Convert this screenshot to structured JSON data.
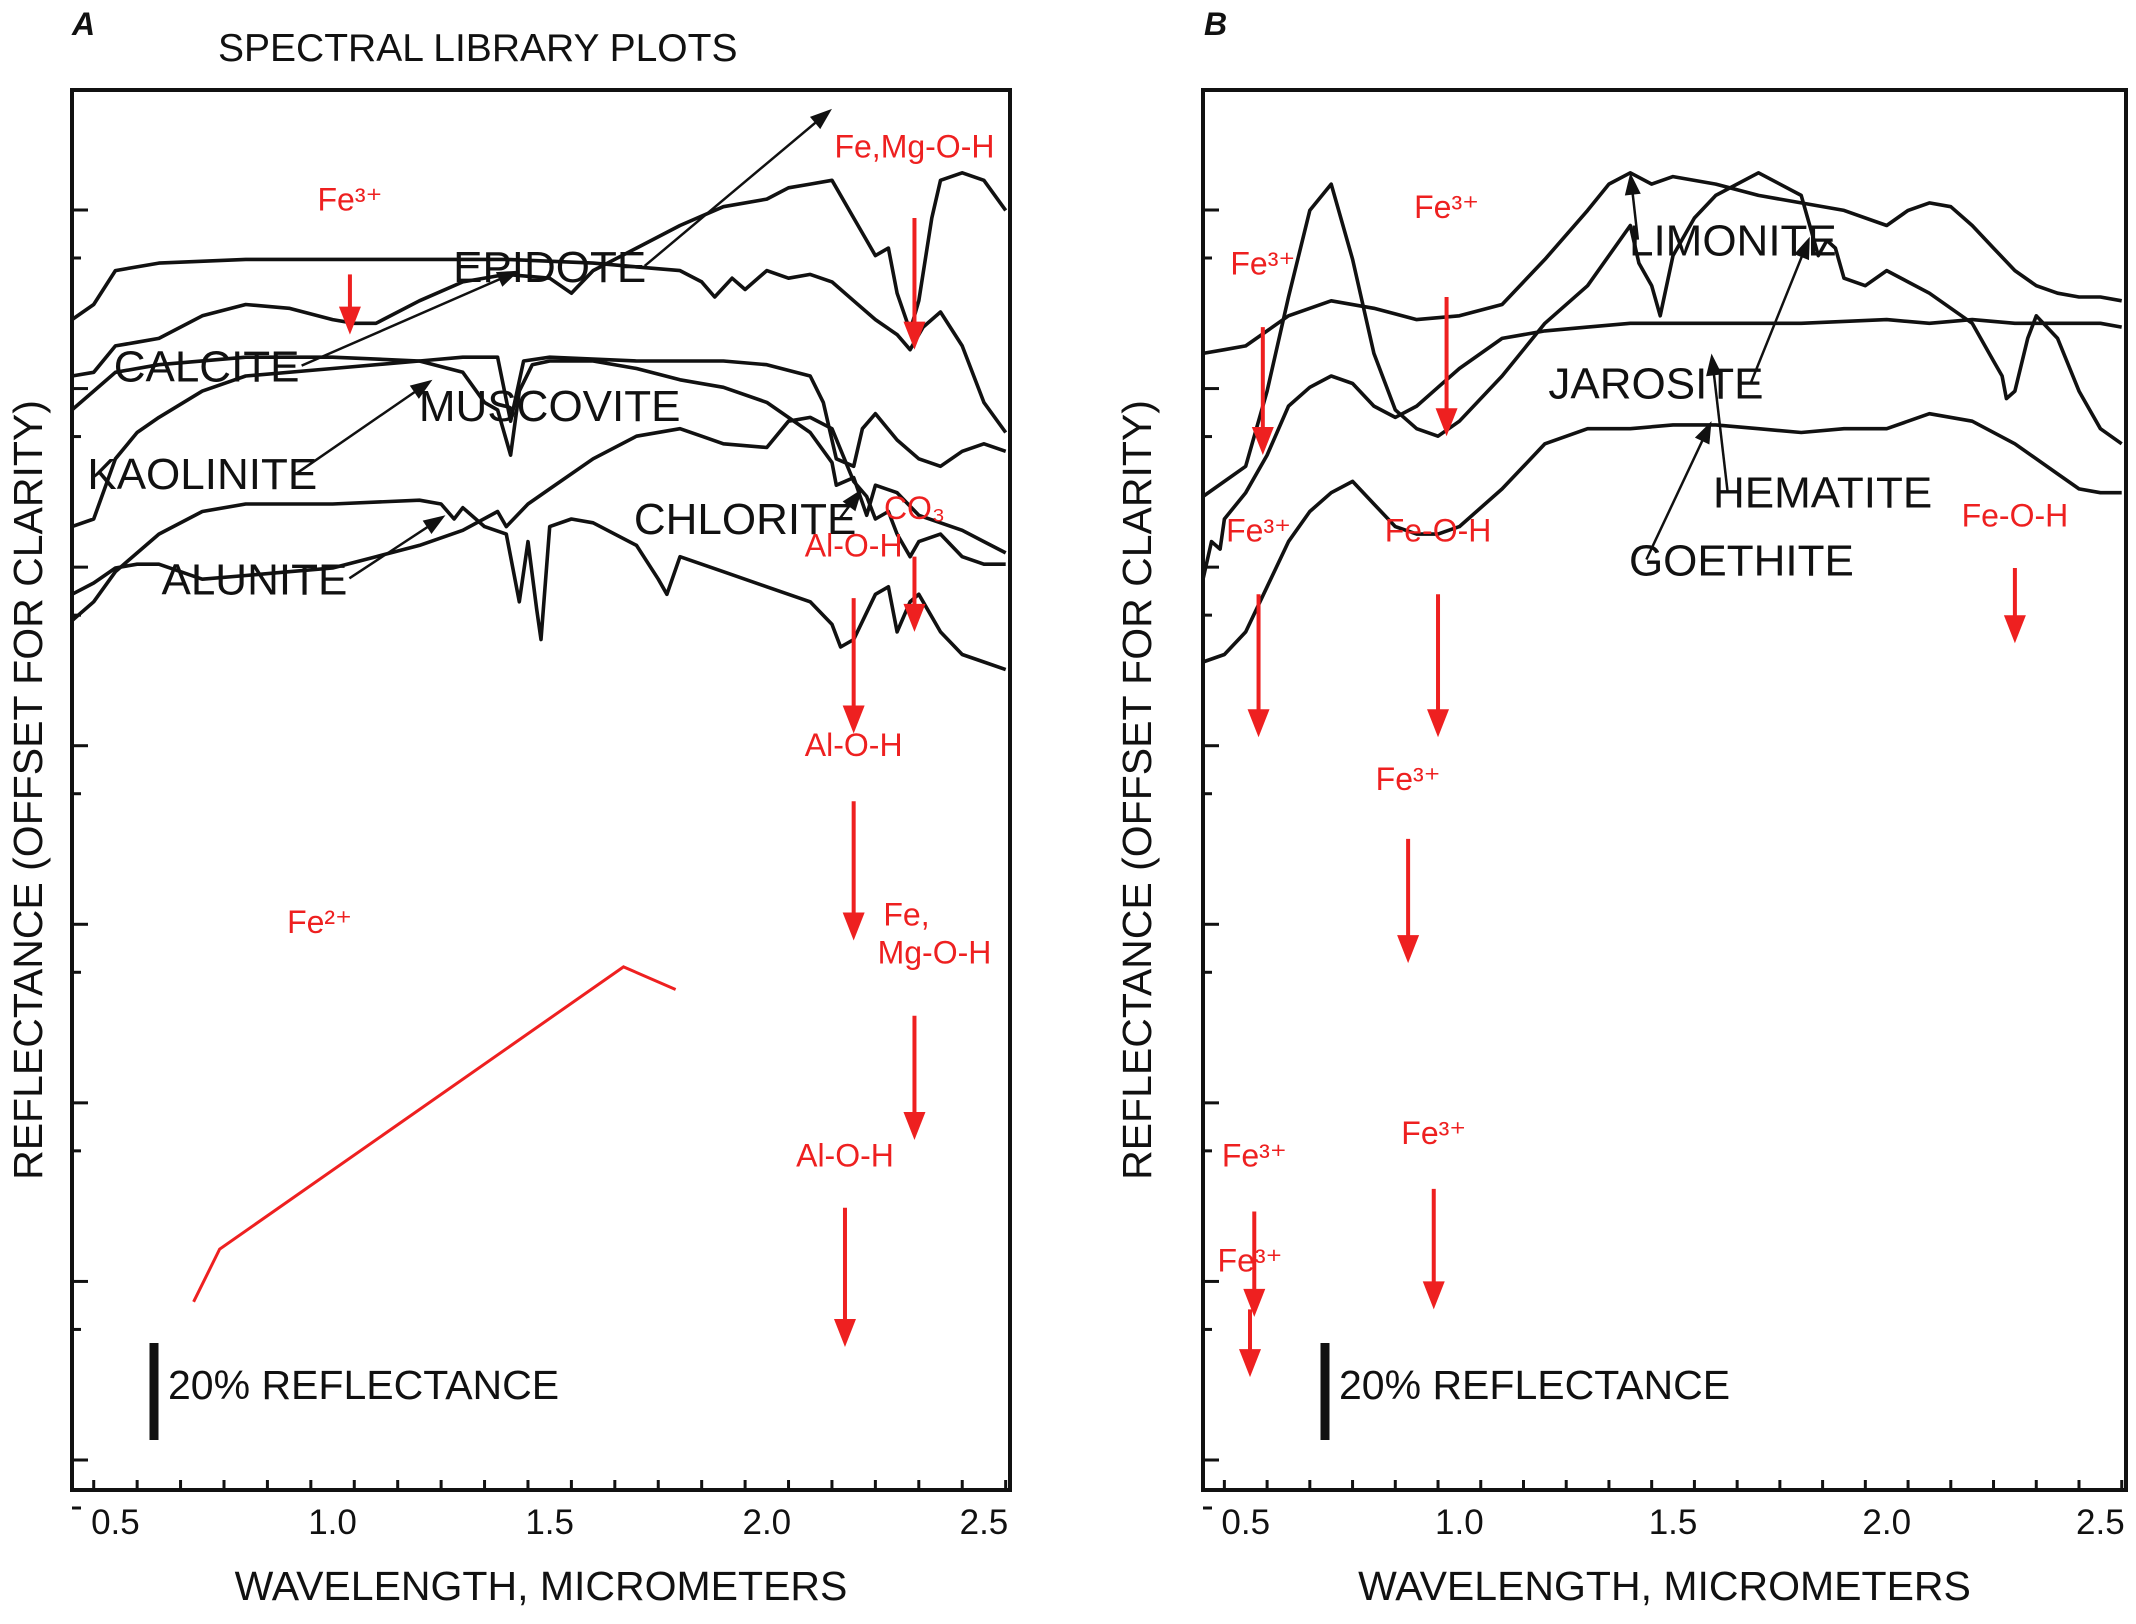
{
  "figure_title": "SPECTRAL LIBRARY PLOTS",
  "colors": {
    "curve": "#111111",
    "annotation": "#ee2020",
    "axis": "#111111"
  },
  "chart_data": [
    {
      "type": "line",
      "panel_label": "A",
      "xlabel": "WAVELENGTH, MICROMETERS",
      "ylabel": "REFLECTANCE (OFFSET FOR CLARITY)",
      "xlim": [
        0.4,
        2.56
      ],
      "xticks": [
        0.5,
        1.0,
        1.5,
        2.0,
        2.5
      ],
      "xtick_labels": [
        "0.5",
        "1.0",
        "1.5",
        "2.0",
        "2.5"
      ],
      "y_offset_ticks": 8,
      "scale_bar_label": "20% REFLECTANCE",
      "series": [
        {
          "name": "EPIDOTE",
          "label_x": 1.5,
          "offset": 0.36,
          "label_dy": 0.03,
          "pointer": [
            2.15,
            0.79
          ],
          "x": [
            0.4,
            0.45,
            0.5,
            0.55,
            0.6,
            0.7,
            0.8,
            0.9,
            1.0,
            1.05,
            1.1,
            1.2,
            1.3,
            1.4,
            1.5,
            1.55,
            1.6,
            1.7,
            1.8,
            1.9,
            2.0,
            2.05,
            2.1,
            2.15,
            2.2,
            2.23,
            2.25,
            2.28,
            2.3,
            2.33,
            2.35,
            2.38,
            2.4,
            2.45,
            2.5,
            2.55
          ],
          "y": [
            0.08,
            0.09,
            0.16,
            0.17,
            0.18,
            0.24,
            0.27,
            0.26,
            0.23,
            0.22,
            0.22,
            0.28,
            0.33,
            0.35,
            0.34,
            0.3,
            0.36,
            0.42,
            0.48,
            0.53,
            0.55,
            0.58,
            0.59,
            0.6,
            0.5,
            0.44,
            0.4,
            0.42,
            0.3,
            0.2,
            0.28,
            0.5,
            0.6,
            0.62,
            0.6,
            0.52
          ]
        },
        {
          "name": "CALCITE",
          "label_x": 0.71,
          "offset": 0.17,
          "label_dy": -0.045,
          "pointer": [
            1.43,
            0.55
          ],
          "x": [
            0.4,
            0.45,
            0.5,
            0.6,
            0.8,
            1.0,
            1.2,
            1.4,
            1.6,
            1.7,
            1.8,
            1.85,
            1.88,
            1.92,
            1.95,
            2.0,
            2.05,
            2.1,
            2.15,
            2.2,
            2.25,
            2.3,
            2.33,
            2.36,
            2.4,
            2.45,
            2.5,
            2.55
          ],
          "y": [
            0.42,
            0.46,
            0.55,
            0.57,
            0.58,
            0.58,
            0.58,
            0.58,
            0.57,
            0.56,
            0.55,
            0.52,
            0.48,
            0.53,
            0.5,
            0.55,
            0.53,
            0.54,
            0.52,
            0.47,
            0.42,
            0.38,
            0.34,
            0.4,
            0.44,
            0.35,
            0.2,
            0.12
          ]
        },
        {
          "name": "MUSCOVITE",
          "label_x": 1.5,
          "offset": 0.02,
          "label_dy": 0.0,
          "pointer": null,
          "x": [
            0.4,
            0.45,
            0.5,
            0.55,
            0.6,
            0.7,
            0.8,
            1.0,
            1.2,
            1.3,
            1.38,
            1.41,
            1.44,
            1.5,
            1.7,
            1.9,
            2.0,
            2.1,
            2.13,
            2.16,
            2.2,
            2.22,
            2.25,
            2.3,
            2.35,
            2.4,
            2.45,
            2.5,
            2.55
          ],
          "y": [
            0.02,
            0.04,
            0.2,
            0.27,
            0.31,
            0.38,
            0.42,
            0.44,
            0.46,
            0.47,
            0.47,
            0.3,
            0.46,
            0.47,
            0.46,
            0.46,
            0.45,
            0.42,
            0.35,
            0.2,
            0.18,
            0.28,
            0.32,
            0.25,
            0.2,
            0.18,
            0.22,
            0.24,
            0.22
          ]
        },
        {
          "name": "KAOLINITE",
          "label_x": 0.7,
          "offset": -0.15,
          "label_dy": -0.01,
          "pointer": [
            1.23,
            0.58
          ],
          "x": [
            0.4,
            0.45,
            0.5,
            0.6,
            0.8,
            1.0,
            1.2,
            1.3,
            1.35,
            1.38,
            1.41,
            1.43,
            1.46,
            1.5,
            1.6,
            1.7,
            1.8,
            1.9,
            2.0,
            2.1,
            2.15,
            2.16,
            2.2,
            2.23,
            2.25,
            2.3,
            2.35,
            2.4,
            2.45,
            2.5,
            2.55
          ],
          "y": [
            0.5,
            0.55,
            0.6,
            0.62,
            0.64,
            0.64,
            0.63,
            0.6,
            0.52,
            0.5,
            0.38,
            0.55,
            0.62,
            0.63,
            0.63,
            0.61,
            0.58,
            0.56,
            0.52,
            0.44,
            0.36,
            0.3,
            0.32,
            0.22,
            0.3,
            0.28,
            0.22,
            0.2,
            0.18,
            0.15,
            0.12
          ]
        },
        {
          "name": "CHLORITE",
          "label_x": 1.95,
          "offset": -0.34,
          "label_dy": 0.06,
          "pointer": [
            2.22,
            0.48
          ],
          "x": [
            0.4,
            0.45,
            0.5,
            0.55,
            0.6,
            0.7,
            0.8,
            0.9,
            1.0,
            1.1,
            1.2,
            1.3,
            1.38,
            1.4,
            1.45,
            1.5,
            1.6,
            1.7,
            1.8,
            1.85,
            1.9,
            2.0,
            2.05,
            2.1,
            2.15,
            2.2,
            2.23,
            2.25,
            2.28,
            2.3,
            2.33,
            2.35,
            2.4,
            2.45,
            2.5,
            2.55
          ],
          "y": [
            0.2,
            0.23,
            0.27,
            0.28,
            0.28,
            0.24,
            0.25,
            0.26,
            0.27,
            0.3,
            0.33,
            0.37,
            0.42,
            0.38,
            0.44,
            0.48,
            0.56,
            0.62,
            0.64,
            0.62,
            0.6,
            0.59,
            0.66,
            0.67,
            0.64,
            0.5,
            0.46,
            0.4,
            0.42,
            0.36,
            0.3,
            0.34,
            0.36,
            0.3,
            0.28,
            0.28
          ]
        },
        {
          "name": "ALUNITE",
          "label_x": 0.82,
          "offset": -0.56,
          "label_dy": 0.12,
          "pointer": [
            1.26,
            0.63
          ],
          "x": [
            0.4,
            0.45,
            0.5,
            0.6,
            0.7,
            0.8,
            1.0,
            1.2,
            1.25,
            1.28,
            1.3,
            1.35,
            1.4,
            1.43,
            1.45,
            1.47,
            1.48,
            1.5,
            1.55,
            1.6,
            1.7,
            1.75,
            1.77,
            1.8,
            1.9,
            2.0,
            2.1,
            2.15,
            2.17,
            2.2,
            2.25,
            2.28,
            2.3,
            2.33,
            2.35,
            2.4,
            2.45,
            2.5,
            2.55
          ],
          "y": [
            0.35,
            0.4,
            0.48,
            0.58,
            0.64,
            0.66,
            0.66,
            0.67,
            0.66,
            0.62,
            0.65,
            0.6,
            0.58,
            0.4,
            0.56,
            0.38,
            0.3,
            0.6,
            0.62,
            0.61,
            0.55,
            0.46,
            0.42,
            0.52,
            0.48,
            0.44,
            0.4,
            0.34,
            0.28,
            0.3,
            0.42,
            0.44,
            0.32,
            0.4,
            0.42,
            0.32,
            0.26,
            0.24,
            0.22
          ]
        }
      ],
      "annotations": [
        {
          "text": "Fe³⁺",
          "x": 1.04,
          "y": 2.88,
          "arrow": [
            2.71,
            2.55
          ]
        },
        {
          "text": "Fe,Mg-O-H",
          "x": 2.34,
          "y": 3.02,
          "arrow": [
            2.86,
            2.51
          ]
        },
        {
          "text": "CO₃",
          "x": 2.34,
          "y": 2.06,
          "arrow": [
            1.96,
            1.76
          ]
        },
        {
          "text": "Al-O-H",
          "x": 2.2,
          "y": 1.96,
          "arrow": [
            1.85,
            1.49
          ]
        },
        {
          "text": "Al-O-H",
          "x": 2.2,
          "y": 1.43,
          "arrow": [
            1.31,
            0.94
          ]
        },
        {
          "text": "Fe, Mg-O-H",
          "x": 2.34,
          "y": 0.98,
          "arrow": [
            0.74,
            0.41
          ]
        },
        {
          "text": "Fe²⁺",
          "x": 0.97,
          "y": 0.96,
          "bracket": [
            [
              0.68,
              -0.02
            ],
            [
              0.74,
              0.12
            ],
            [
              1.67,
              0.87
            ],
            [
              1.79,
              0.81
            ]
          ]
        },
        {
          "text": "Al-O-H",
          "x": 2.18,
          "y": 0.34,
          "arrow": [
            0.23,
            -0.14
          ]
        }
      ]
    },
    {
      "type": "line",
      "panel_label": "B",
      "xlabel": "WAVELENGTH, MICROMETERS",
      "ylabel": "REFLECTANCE (OFFSET FOR CLARITY)",
      "xlim": [
        0.4,
        2.56
      ],
      "xticks": [
        0.5,
        1.0,
        1.5,
        2.0,
        2.5
      ],
      "xtick_labels": [
        "0.5",
        "1.0",
        "1.5",
        "2.0",
        "2.5"
      ],
      "y_offset_ticks": 8,
      "scale_bar_label": "20% REFLECTANCE",
      "series": [
        {
          "name": "LIMONITE",
          "label_x": 1.64,
          "offset": 0.4,
          "label_dy": 0.06,
          "pointer": [
            1.4,
            0.58
          ],
          "x": [
            0.4,
            0.45,
            0.5,
            0.55,
            0.6,
            0.7,
            0.8,
            0.9,
            1.0,
            1.1,
            1.2,
            1.3,
            1.35,
            1.4,
            1.45,
            1.5,
            1.6,
            1.7,
            1.8,
            1.9,
            2.0,
            2.05,
            2.1,
            2.15,
            2.2,
            2.25,
            2.3,
            2.35,
            2.4,
            2.45,
            2.5,
            2.55
          ],
          "y": [
            0.1,
            0.11,
            0.12,
            0.16,
            0.2,
            0.24,
            0.22,
            0.19,
            0.2,
            0.23,
            0.35,
            0.48,
            0.55,
            0.58,
            0.55,
            0.57,
            0.55,
            0.52,
            0.5,
            0.48,
            0.44,
            0.48,
            0.5,
            0.49,
            0.44,
            0.38,
            0.32,
            0.28,
            0.26,
            0.25,
            0.25,
            0.24
          ]
        },
        {
          "name": "JAROSITE",
          "label_x": 1.46,
          "offset": 0.1,
          "label_dy": -0.02,
          "pointer": [
            1.82,
            0.71
          ],
          "x": [
            0.4,
            0.45,
            0.5,
            0.55,
            0.6,
            0.65,
            0.7,
            0.75,
            0.8,
            0.85,
            0.9,
            0.95,
            1.0,
            1.1,
            1.2,
            1.3,
            1.4,
            1.42,
            1.45,
            1.47,
            1.5,
            1.55,
            1.6,
            1.7,
            1.8,
            1.84,
            1.86,
            1.88,
            1.9,
            1.95,
            2.0,
            2.1,
            2.2,
            2.25,
            2.27,
            2.28,
            2.3,
            2.33,
            2.35,
            2.4,
            2.45,
            2.5,
            2.55
          ],
          "y": [
            0.02,
            0.06,
            0.1,
            0.3,
            0.55,
            0.78,
            0.85,
            0.65,
            0.4,
            0.25,
            0.2,
            0.18,
            0.22,
            0.34,
            0.48,
            0.58,
            0.74,
            0.64,
            0.58,
            0.5,
            0.66,
            0.76,
            0.82,
            0.88,
            0.82,
            0.66,
            0.7,
            0.68,
            0.6,
            0.58,
            0.62,
            0.56,
            0.48,
            0.38,
            0.34,
            0.28,
            0.3,
            0.44,
            0.5,
            0.44,
            0.3,
            0.2,
            0.16
          ]
        },
        {
          "name": "HEMATITE",
          "label_x": 1.85,
          "offset": -0.22,
          "label_dy": 0.01,
          "pointer": [
            1.59,
            0.72
          ],
          "x": [
            0.4,
            0.42,
            0.44,
            0.45,
            0.5,
            0.55,
            0.6,
            0.65,
            0.7,
            0.75,
            0.8,
            0.85,
            0.9,
            0.95,
            1.0,
            1.1,
            1.2,
            1.3,
            1.4,
            1.6,
            1.8,
            2.0,
            2.1,
            2.2,
            2.3,
            2.4,
            2.5,
            2.55
          ],
          "y": [
            0.12,
            0.22,
            0.2,
            0.28,
            0.35,
            0.45,
            0.58,
            0.63,
            0.66,
            0.64,
            0.58,
            0.55,
            0.58,
            0.63,
            0.68,
            0.76,
            0.78,
            0.79,
            0.8,
            0.8,
            0.8,
            0.81,
            0.8,
            0.81,
            0.8,
            0.8,
            0.8,
            0.79
          ]
        },
        {
          "name": "GOETHITE",
          "label_x": 1.66,
          "offset": -0.42,
          "label_dy": 0.03,
          "pointer": [
            1.59,
            0.74
          ],
          "x": [
            0.4,
            0.45,
            0.5,
            0.55,
            0.6,
            0.65,
            0.7,
            0.75,
            0.8,
            0.85,
            0.9,
            0.95,
            1.0,
            1.1,
            1.2,
            1.3,
            1.4,
            1.5,
            1.6,
            1.7,
            1.8,
            1.9,
            2.0,
            2.1,
            2.2,
            2.3,
            2.4,
            2.45,
            2.5,
            2.55
          ],
          "y": [
            0.1,
            0.12,
            0.18,
            0.3,
            0.42,
            0.5,
            0.55,
            0.58,
            0.52,
            0.46,
            0.44,
            0.44,
            0.46,
            0.56,
            0.68,
            0.72,
            0.72,
            0.73,
            0.73,
            0.72,
            0.71,
            0.72,
            0.72,
            0.76,
            0.74,
            0.68,
            0.6,
            0.56,
            0.55,
            0.55
          ]
        }
      ],
      "annotations": [
        {
          "text": "Fe³⁺",
          "x": 0.54,
          "y": 2.71,
          "arrow": [
            2.57,
            2.23
          ]
        },
        {
          "text": "Fe³⁺",
          "x": 0.97,
          "y": 2.86,
          "arrow": [
            2.65,
            2.28
          ]
        },
        {
          "text": "Fe³⁺",
          "x": 0.53,
          "y": 2.0,
          "arrow": [
            1.86,
            1.48
          ]
        },
        {
          "text": "Fe-O-H",
          "x": 0.95,
          "y": 2.0,
          "arrow": [
            1.86,
            1.48
          ]
        },
        {
          "text": "Fe-O-H",
          "x": 2.3,
          "y": 2.04,
          "arrow": [
            1.93,
            1.73
          ]
        },
        {
          "text": "Fe³⁺",
          "x": 0.88,
          "y": 1.34,
          "arrow": [
            1.21,
            0.88
          ]
        },
        {
          "text": "Fe³⁺",
          "x": 0.52,
          "y": 0.34,
          "arrow": [
            0.22,
            -0.06
          ]
        },
        {
          "text": "Fe³⁺",
          "x": 0.94,
          "y": 0.4,
          "arrow": [
            0.28,
            -0.04
          ]
        },
        {
          "text": "Fe³⁺",
          "x": 0.51,
          "y": 0.06,
          "arrow": [
            -0.04,
            -0.22
          ]
        }
      ]
    }
  ]
}
